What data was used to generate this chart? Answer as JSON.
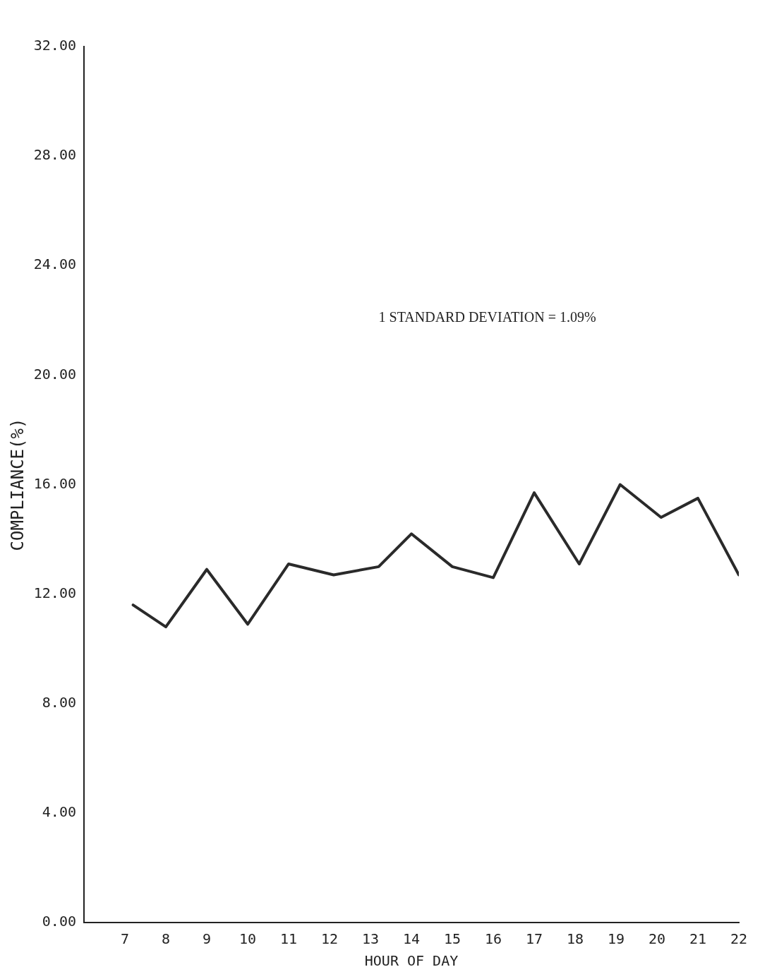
{
  "chart_data": {
    "type": "line",
    "xlabel": "HOUR OF DAY",
    "ylabel": "COMPLIANCE(%)",
    "annotations": [
      "1 STANDARD DEVIATION = 1.09%"
    ],
    "x": [
      7.2,
      8,
      9,
      10,
      11,
      12.1,
      13.2,
      14,
      15,
      16,
      17,
      18.1,
      19.1,
      20.1,
      21,
      22
    ],
    "series": [
      {
        "color": "#2a2a2a",
        "values": [
          11.6,
          10.8,
          12.9,
          10.9,
          13.1,
          12.7,
          13.0,
          14.2,
          13.0,
          12.6,
          15.7,
          13.1,
          16.0,
          14.8,
          15.5,
          12.7
        ]
      }
    ],
    "xlim": [
      6,
      22
    ],
    "xticks": [
      7,
      8,
      9,
      10,
      11,
      12,
      13,
      14,
      15,
      16,
      17,
      18,
      19,
      20,
      21,
      22
    ],
    "ylim": [
      0,
      32
    ],
    "yticks": [
      {
        "value": 0,
        "label": "0.00"
      },
      {
        "value": 4,
        "label": "4.00"
      },
      {
        "value": 8,
        "label": "8.00"
      },
      {
        "value": 12,
        "label": "12.00"
      },
      {
        "value": 16,
        "label": "16.00"
      },
      {
        "value": 20,
        "label": "20.00"
      },
      {
        "value": 24,
        "label": "24.00"
      },
      {
        "value": 28,
        "label": "28.00"
      },
      {
        "value": 32,
        "label": "32.00"
      }
    ],
    "grid": false,
    "legend": false,
    "marker": "none",
    "line_style": "solid"
  }
}
